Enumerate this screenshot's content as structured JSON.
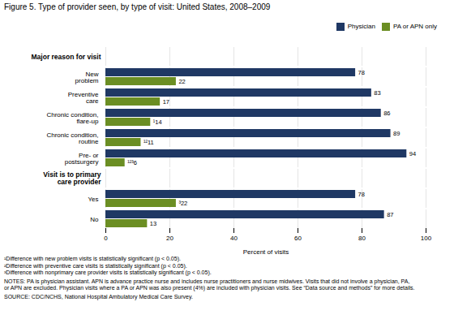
{
  "chart_data": {
    "type": "bar",
    "orientation": "horizontal",
    "title": "Figure 5. Type of provider seen, by type of visit: United States, 2008–2009",
    "categories": [
      "New\nproblem",
      "Preventive\ncare",
      "Chronic condition,\nflare-up",
      "Chronic condition,\nroutine",
      "Pre- or\npostsurgery",
      "Yes",
      "No"
    ],
    "groups": [
      {
        "name": "Major reason for visit",
        "categories": [
          "New\nproblem",
          "Preventive\ncare",
          "Chronic condition,\nflare-up",
          "Chronic condition,\nroutine",
          "Pre- or\npostsurgery"
        ]
      },
      {
        "name": "Visit is to primary\ncare provider",
        "categories": [
          "Yes",
          "No"
        ]
      }
    ],
    "series": [
      {
        "name": "Physician",
        "color": "#1f3864",
        "values": [
          78,
          83,
          86,
          89,
          94,
          78,
          87
        ]
      },
      {
        "name": "PA or APN only",
        "color": "#6b8e23",
        "values": [
          22,
          17,
          14,
          11,
          6,
          22,
          13
        ],
        "value_labels": [
          "22",
          "17",
          "¹14",
          "¹²11",
          "¹²³6",
          "³22",
          "13"
        ]
      }
    ],
    "xlabel": "Percent of visits",
    "xlim": [
      0,
      100
    ],
    "xticks": [
      0,
      20,
      40,
      60,
      80,
      100
    ],
    "grid": true,
    "legend": "upper right",
    "data_labels": true,
    "footnotes": [
      "¹Difference with new problem visits is statistically significant (p < 0.05).",
      "²Difference with preventive care visits is statistically significant (p < 0.05).",
      "³Difference with nonprimary care provider visits is statistically significant (p < 0.05)."
    ],
    "notes": "NOTES: PA is physician assistant. APN is advance practice nurse and includes nurse practitioners and nurse midwives. Visits that did not involve a physician, PA,\nor APN are excluded. Physician visits where a PA or APN was also present (4%) are included with physician visits. See “Data source and methods” for more details.",
    "source": "SOURCE: CDC/NCHS, National Hospital Ambulatory Medical Care Survey."
  }
}
